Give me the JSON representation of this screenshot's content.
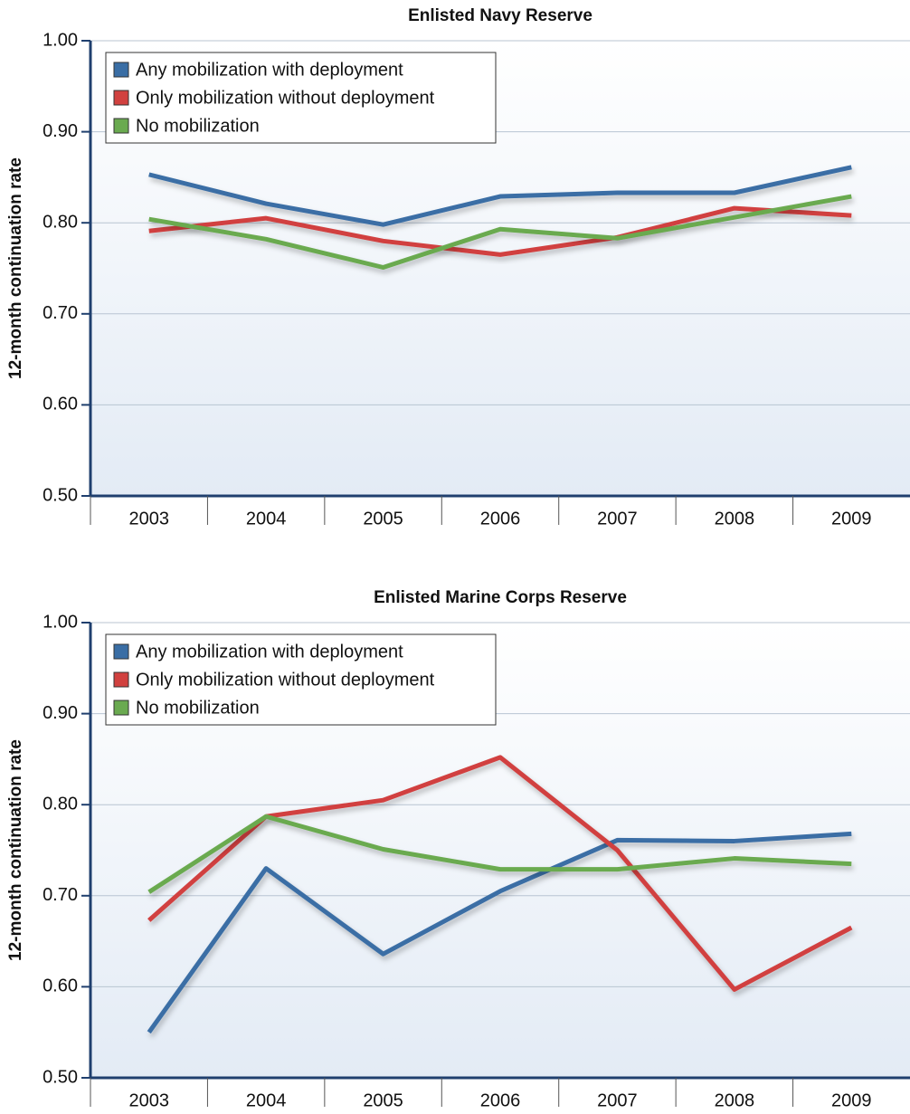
{
  "chart_data": [
    {
      "type": "line",
      "title": "Enlisted Navy Reserve",
      "y_label": "12-month continuation rate",
      "categories": [
        "2003",
        "2004",
        "2005",
        "2006",
        "2007",
        "2008",
        "2009"
      ],
      "series": [
        {
          "name": "Any mobilization with deployment",
          "color": "#3a6ea5",
          "values": [
            0.853,
            0.821,
            0.798,
            0.829,
            0.833,
            0.833,
            0.861
          ]
        },
        {
          "name": "Only mobilization without deployment",
          "color": "#d1413f",
          "values": [
            0.791,
            0.805,
            0.78,
            0.765,
            0.784,
            0.816,
            0.808
          ]
        },
        {
          "name": "No mobilization",
          "color": "#6aaa50",
          "values": [
            0.804,
            0.782,
            0.751,
            0.793,
            0.783,
            0.806,
            0.829
          ]
        }
      ],
      "ylim": [
        0.5,
        1.0
      ],
      "yticks": [
        {
          "value": 0.5,
          "label": "0.50"
        },
        {
          "value": 0.6,
          "label": "0.60"
        },
        {
          "value": 0.7,
          "label": "0.70"
        },
        {
          "value": 0.8,
          "label": "0.80"
        },
        {
          "value": 0.9,
          "label": "0.90"
        },
        {
          "value": 1.0,
          "label": "1.00"
        }
      ],
      "grid": true,
      "legend": "upper left"
    },
    {
      "type": "line",
      "title": "Enlisted Marine Corps Reserve",
      "y_label": "12-month continuation rate",
      "categories": [
        "2003",
        "2004",
        "2005",
        "2006",
        "2007",
        "2008",
        "2009"
      ],
      "series": [
        {
          "name": "Any mobilization with deployment",
          "color": "#3a6ea5",
          "values": [
            0.55,
            0.73,
            0.636,
            0.705,
            0.761,
            0.76,
            0.768
          ]
        },
        {
          "name": "Only mobilization without deployment",
          "color": "#d1413f",
          "values": [
            0.673,
            0.787,
            0.805,
            0.852,
            0.75,
            0.597,
            0.665
          ]
        },
        {
          "name": "No mobilization",
          "color": "#6aaa50",
          "values": [
            0.704,
            0.787,
            0.751,
            0.729,
            0.729,
            0.741,
            0.735
          ]
        }
      ],
      "ylim": [
        0.5,
        1.0
      ],
      "yticks": [
        {
          "value": 0.5,
          "label": "0.50"
        },
        {
          "value": 0.6,
          "label": "0.60"
        },
        {
          "value": 0.7,
          "label": "0.70"
        },
        {
          "value": 0.8,
          "label": "0.80"
        },
        {
          "value": 0.9,
          "label": "0.90"
        },
        {
          "value": 1.0,
          "label": "1.00"
        }
      ],
      "grid": true,
      "legend": "upper left"
    }
  ]
}
